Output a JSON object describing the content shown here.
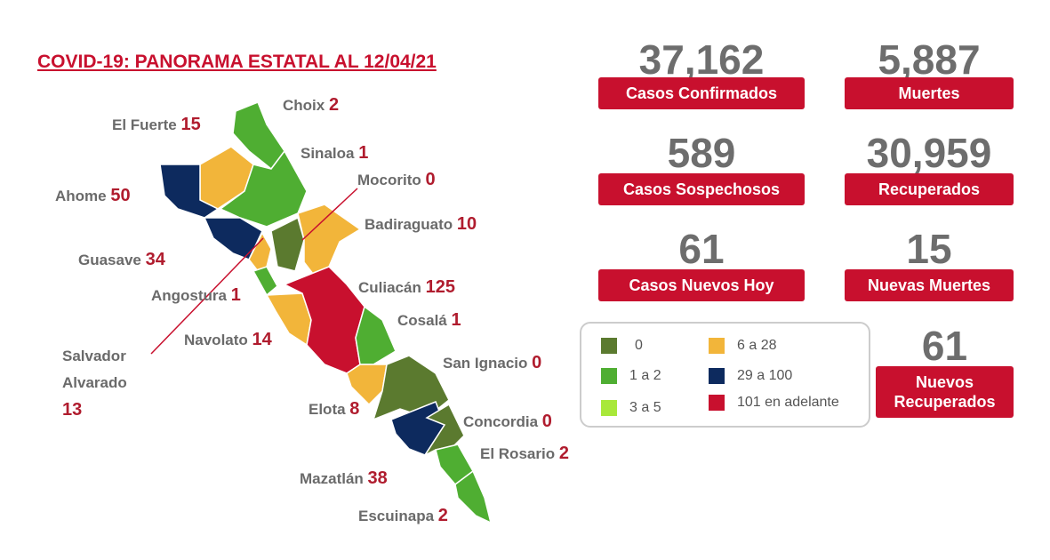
{
  "title": "COVID-19: PANORAMA ESTATAL AL 12/04/21",
  "stats": [
    {
      "value": "37,162",
      "label": "Casos Confirmados"
    },
    {
      "value": "5,887",
      "label": "Muertes"
    },
    {
      "value": "589",
      "label": "Casos Sospechosos"
    },
    {
      "value": "30,959",
      "label": "Recuperados"
    },
    {
      "value": "61",
      "label": "Casos Nuevos Hoy"
    },
    {
      "value": "15",
      "label": "Nuevas Muertes"
    },
    {
      "value": "61",
      "label": "Nuevos Recuperados"
    }
  ],
  "municipalities": [
    {
      "name": "Choix",
      "value": 2
    },
    {
      "name": "El Fuerte",
      "value": 15
    },
    {
      "name": "Sinaloa",
      "value": 1
    },
    {
      "name": "Mocorito",
      "value": 0
    },
    {
      "name": "Ahome",
      "value": 50
    },
    {
      "name": "Badiraguato",
      "value": 10
    },
    {
      "name": "Guasave",
      "value": 34
    },
    {
      "name": "Culiacán",
      "value": 125
    },
    {
      "name": "Angostura",
      "value": 1
    },
    {
      "name": "Cosalá",
      "value": 1
    },
    {
      "name": "Salvador Alvarado",
      "value": 13
    },
    {
      "name": "Navolato",
      "value": 14
    },
    {
      "name": "San Ignacio",
      "value": 0
    },
    {
      "name": "Elota",
      "value": 8
    },
    {
      "name": "Concordia",
      "value": 0
    },
    {
      "name": "El Rosario",
      "value": 2
    },
    {
      "name": "Mazatlán",
      "value": 38
    },
    {
      "name": "Escuinapa",
      "value": 2
    }
  ],
  "legend": [
    {
      "label": "0",
      "color": "#5b7a2f"
    },
    {
      "label": "1 a 2",
      "color": "#4fae32"
    },
    {
      "label": "3 a 5",
      "color": "#a8e83a"
    },
    {
      "label": "6 a 28",
      "color": "#f2b53a"
    },
    {
      "label": "29 a 100",
      "color": "#0d2a5e"
    },
    {
      "label": "101 en adelante",
      "color": "#c8102e"
    }
  ]
}
